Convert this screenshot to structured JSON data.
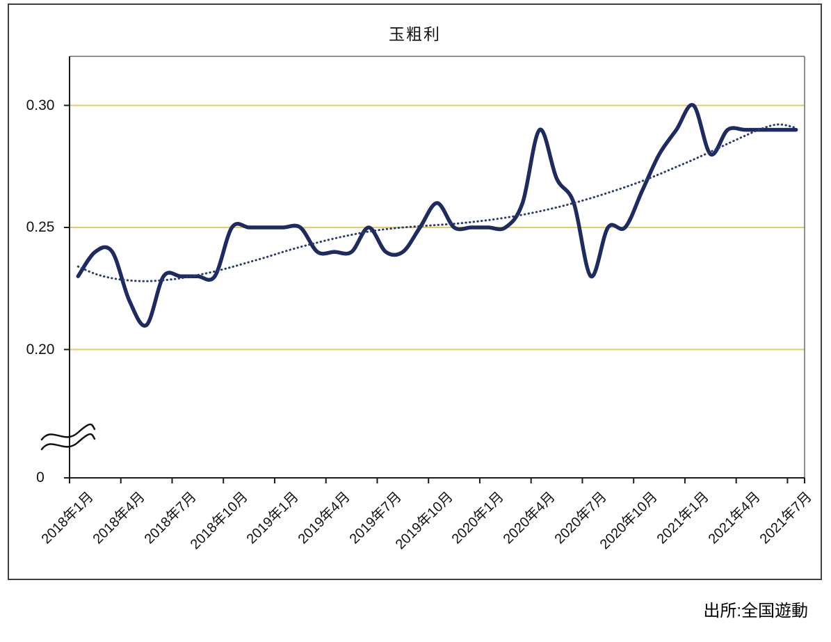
{
  "title": "玉粗利",
  "source_note": "出所:全国遊動",
  "colors": {
    "line": "#1d2b60",
    "trend": "#2a3a6e",
    "grid": "#e6ca66",
    "axis": "#1a1a1a",
    "plot_border": "#6a6a6a",
    "frame": "#3f3f3f"
  },
  "chart_data": {
    "type": "line",
    "title": "玉粗利",
    "xlabel": "",
    "ylabel": "",
    "ylim": [
      0,
      0.32
    ],
    "axis_break": true,
    "grid": "horizontal-only",
    "legend": "none",
    "y_gridlines": [
      0.3,
      0.25,
      0.2
    ],
    "y_axis_labels": [
      {
        "text": "0.30",
        "value": 0.3
      },
      {
        "text": "0.25",
        "value": 0.25
      },
      {
        "text": "0.20",
        "value": 0.2
      },
      {
        "text": "0",
        "value": 0
      }
    ],
    "x_tick_interval": 3,
    "x_tick_labels": [
      "2018年1月",
      "2018年4月",
      "2018年7月",
      "2018年10月",
      "2019年1月",
      "2019年4月",
      "2019年7月",
      "2019年10月",
      "2020年1月",
      "2020年4月",
      "2020年7月",
      "2020年10月",
      "2021年1月",
      "2021年4月",
      "2021年7月"
    ],
    "categories": [
      "2018年1月",
      "2018年2月",
      "2018年3月",
      "2018年4月",
      "2018年5月",
      "2018年6月",
      "2018年7月",
      "2018年8月",
      "2018年9月",
      "2018年10月",
      "2018年11月",
      "2018年12月",
      "2019年1月",
      "2019年2月",
      "2019年3月",
      "2019年4月",
      "2019年5月",
      "2019年6月",
      "2019年7月",
      "2019年8月",
      "2019年9月",
      "2019年10月",
      "2019年11月",
      "2019年12月",
      "2020年1月",
      "2020年2月",
      "2020年3月",
      "2020年4月",
      "2020年5月",
      "2020年6月",
      "2020年7月",
      "2020年8月",
      "2020年9月",
      "2020年10月",
      "2020年11月",
      "2020年12月",
      "2021年1月",
      "2021年2月",
      "2021年3月",
      "2021年4月",
      "2021年5月",
      "2021年6月",
      "2021年7月"
    ],
    "series": [
      {
        "name": "main",
        "style": "solid",
        "values": [
          0.23,
          0.24,
          0.24,
          0.22,
          0.21,
          0.23,
          0.23,
          0.23,
          0.23,
          0.25,
          0.25,
          0.25,
          0.25,
          0.25,
          0.24,
          0.24,
          0.24,
          0.25,
          0.24,
          0.24,
          0.25,
          0.26,
          0.25,
          0.25,
          0.25,
          0.25,
          0.26,
          0.29,
          0.27,
          0.26,
          0.23,
          0.25,
          0.25,
          0.265,
          0.28,
          0.29,
          0.3,
          0.28,
          0.29,
          0.29,
          0.29,
          0.29,
          0.29
        ]
      },
      {
        "name": "trend",
        "style": "dotted",
        "values": [
          0.234,
          0.231,
          0.2292,
          0.2283,
          0.228,
          0.2284,
          0.2292,
          0.2305,
          0.232,
          0.2338,
          0.2358,
          0.2378,
          0.24,
          0.242,
          0.2438,
          0.2455,
          0.247,
          0.2483,
          0.2493,
          0.25,
          0.2505,
          0.251,
          0.2515,
          0.2522,
          0.253,
          0.254,
          0.2552,
          0.2566,
          0.2582,
          0.26,
          0.262,
          0.2642,
          0.2665,
          0.269,
          0.2718,
          0.2748,
          0.2778,
          0.281,
          0.2843,
          0.2875,
          0.2905,
          0.2922,
          0.2908
        ]
      }
    ]
  }
}
